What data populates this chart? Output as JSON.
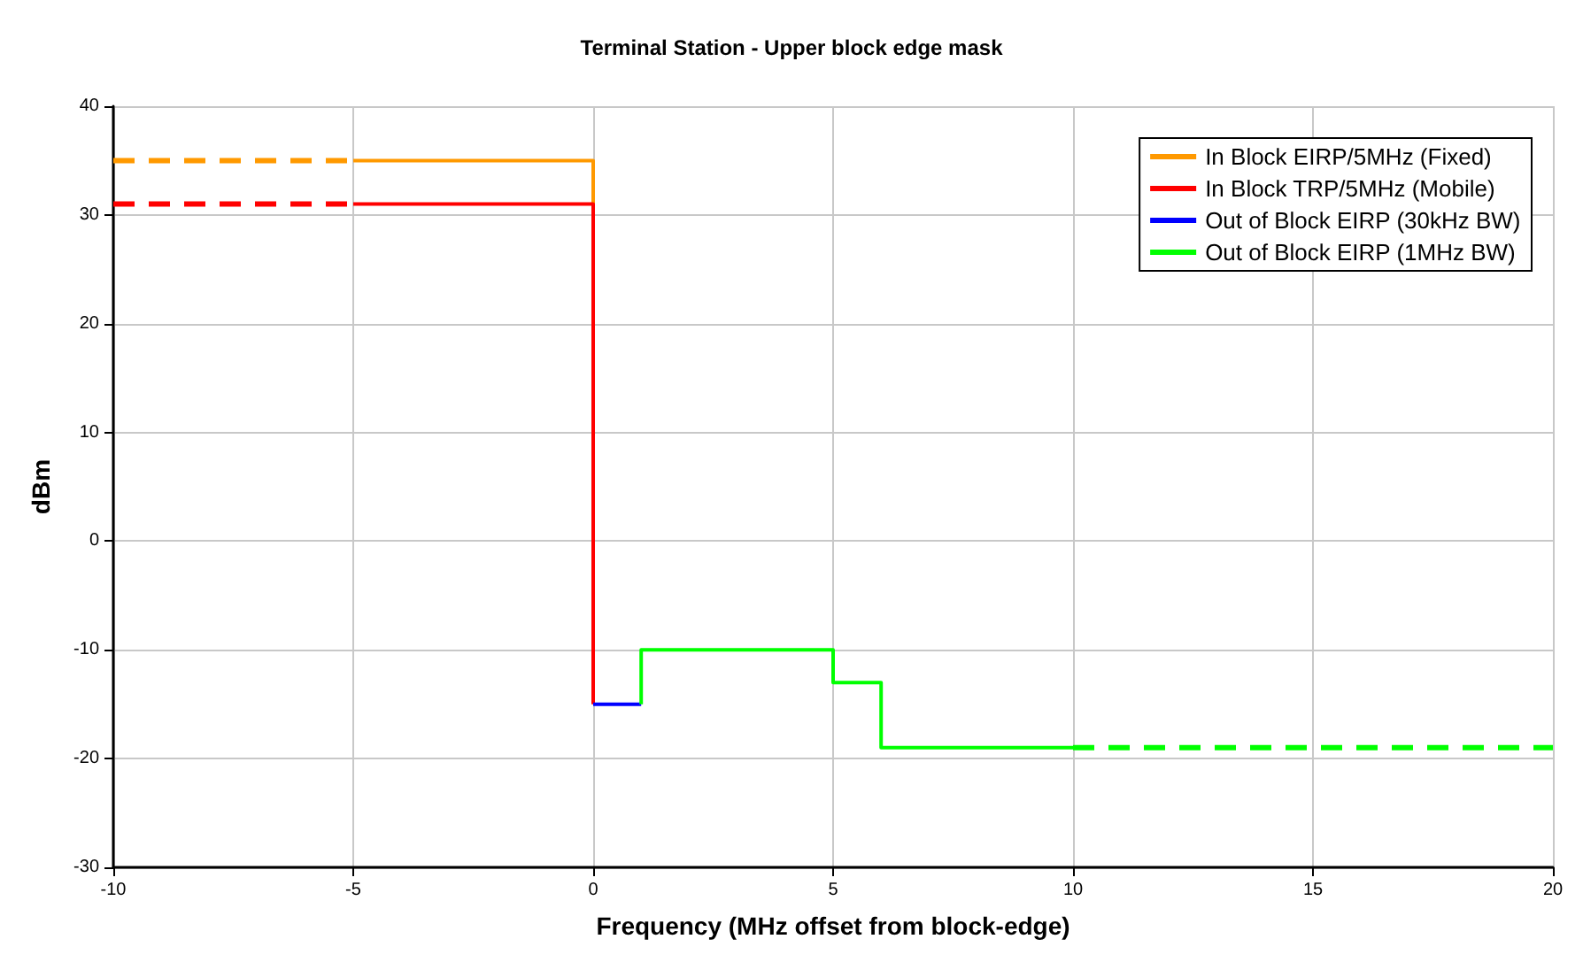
{
  "chart_data": {
    "type": "line",
    "title": "Terminal Station - Upper block edge mask",
    "xlabel": "Frequency (MHz offset from block-edge)",
    "ylabel": "dBm",
    "xlim": [
      -10,
      20
    ],
    "xticks": [
      -10,
      -5,
      0,
      5,
      10,
      15,
      20
    ],
    "ylim": [
      -30,
      40
    ],
    "yticks": [
      -30,
      -20,
      -10,
      0,
      10,
      20,
      30,
      40
    ],
    "grid": true,
    "legend": "top right",
    "series": [
      {
        "name": "In Block EIRP/5MHz (Fixed)",
        "color": "#ff9900",
        "x": [
          -5,
          0,
          0
        ],
        "values": [
          35,
          35,
          31
        ],
        "line_style": "solid"
      },
      {
        "name": "In Block TRP/5MHz (Mobile)",
        "color": "#ff0000",
        "x": [
          -5,
          0,
          0
        ],
        "values": [
          31,
          31,
          -15
        ],
        "line_style": "solid"
      },
      {
        "name": "Out of Block EIRP (30kHz BW)",
        "color": "#0000ff",
        "x": [
          0,
          1
        ],
        "values": [
          -15,
          -15
        ],
        "line_style": "solid"
      },
      {
        "name": "Out of Block EIRP (1MHz BW)",
        "color": "#00ff00",
        "x": [
          1,
          1,
          5,
          5,
          6,
          6,
          10
        ],
        "values": [
          -15,
          -10,
          -10,
          -13,
          -13,
          -19,
          -19
        ],
        "line_style": "solid"
      },
      {
        "color": "#ff9900",
        "x": [
          -10,
          -5
        ],
        "values": [
          35,
          35
        ],
        "line_style": "dashed"
      },
      {
        "color": "#ff0000",
        "x": [
          -10,
          -5
        ],
        "values": [
          31,
          31
        ],
        "line_style": "dashed"
      },
      {
        "color": "#00ff00",
        "x": [
          10,
          20
        ],
        "values": [
          -19,
          -19
        ],
        "line_style": "dashed"
      }
    ]
  }
}
